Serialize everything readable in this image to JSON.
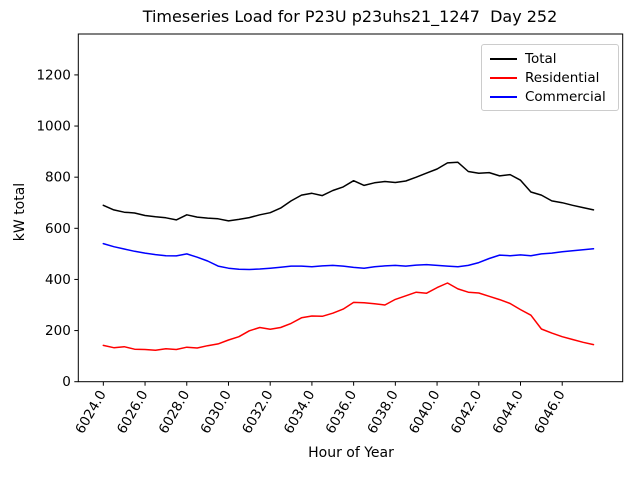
{
  "figure": {
    "background": "#ffffff",
    "spine_color": "#000000",
    "tick_color": "#000000",
    "legend_border_color": "#cccccc"
  },
  "chart_data": {
    "type": "line",
    "title": "Timeseries Load for P23U p23uhs21_1247  Day 252",
    "xlabel": "Hour of Year",
    "ylabel": "kW total",
    "xlim": [
      6022.8,
      6048.9
    ],
    "ylim": [
      0,
      1360
    ],
    "grid": false,
    "legend_position": "upper right",
    "x_tick_rotation_deg": 60,
    "xticks": [
      6024,
      6026,
      6028,
      6030,
      6032,
      6034,
      6036,
      6038,
      6040,
      6042,
      6044,
      6046
    ],
    "xtick_labels": [
      "6024.0",
      "6026.0",
      "6028.0",
      "6030.0",
      "6032.0",
      "6034.0",
      "6036.0",
      "6038.0",
      "6040.0",
      "6042.0",
      "6044.0",
      "6046.0"
    ],
    "yticks": [
      0,
      200,
      400,
      600,
      800,
      1000,
      1200
    ],
    "ytick_labels": [
      "0",
      "200",
      "400",
      "600",
      "800",
      "1000",
      "1200"
    ],
    "x": [
      6024.0,
      6024.5,
      6025.0,
      6025.5,
      6026.0,
      6026.5,
      6027.0,
      6027.5,
      6028.0,
      6028.5,
      6029.0,
      6029.5,
      6030.0,
      6030.5,
      6031.0,
      6031.5,
      6032.0,
      6032.5,
      6033.0,
      6033.5,
      6034.0,
      6034.5,
      6035.0,
      6035.5,
      6036.0,
      6036.5,
      6037.0,
      6037.5,
      6038.0,
      6038.5,
      6039.0,
      6039.5,
      6040.0,
      6040.5,
      6041.0,
      6041.5,
      6042.0,
      6042.5,
      6043.0,
      6043.5,
      6044.0,
      6044.5,
      6045.0,
      6045.5,
      6046.0,
      6046.5,
      6047.0,
      6047.5
    ],
    "series": [
      {
        "name": "Total",
        "color": "#000000",
        "values": [
          690,
          672,
          663,
          660,
          650,
          645,
          641,
          633,
          653,
          644,
          640,
          637,
          629,
          635,
          642,
          653,
          661,
          679,
          707,
          730,
          737,
          728,
          748,
          762,
          786,
          768,
          778,
          783,
          779,
          785,
          800,
          816,
          832,
          856,
          858,
          822,
          815,
          818,
          805,
          810,
          788,
          742,
          730,
          707,
          700,
          690,
          681,
          672
        ]
      },
      {
        "name": "Residential",
        "color": "#ff0000",
        "values": [
          142,
          133,
          137,
          127,
          126,
          123,
          129,
          126,
          135,
          132,
          141,
          148,
          163,
          176,
          199,
          212,
          205,
          212,
          228,
          250,
          257,
          256,
          268,
          284,
          310,
          309,
          305,
          300,
          322,
          336,
          350,
          346,
          368,
          386,
          363,
          350,
          347,
          334,
          321,
          306,
          282,
          260,
          206,
          190,
          176,
          165,
          154,
          145
        ]
      },
      {
        "name": "Commercial",
        "color": "#0000ff",
        "values": [
          540,
          528,
          519,
          510,
          503,
          497,
          493,
          492,
          500,
          487,
          472,
          452,
          444,
          440,
          439,
          441,
          444,
          448,
          452,
          452,
          450,
          453,
          455,
          452,
          447,
          444,
          450,
          453,
          455,
          452,
          456,
          458,
          455,
          452,
          450,
          455,
          466,
          482,
          495,
          493,
          496,
          493,
          500,
          503,
          508,
          512,
          516,
          520
        ]
      }
    ]
  }
}
